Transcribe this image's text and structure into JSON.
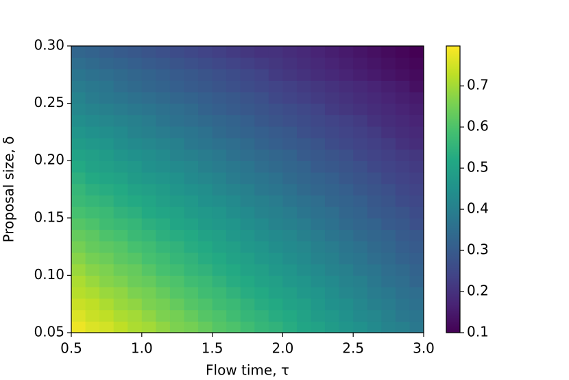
{
  "chart_data": {
    "type": "heatmap",
    "colormap": "viridis",
    "xlabel": "Flow time, τ",
    "ylabel": "Proposal size, δ",
    "xlim": [
      0.5,
      3.0
    ],
    "ylim": [
      0.05,
      0.3
    ],
    "xticks": [
      0.5,
      {
        "value": 1.0,
        "label": "1.0"
      },
      1.5,
      {
        "value": 2.0,
        "label": "2.0"
      },
      2.5,
      {
        "value": 3.0,
        "label": "3.0"
      }
    ],
    "yticks": [
      0.05,
      {
        "value": 0.1,
        "label": "0.10"
      },
      0.15,
      {
        "value": 0.2,
        "label": "0.20"
      },
      0.25,
      {
        "value": 0.3,
        "label": "0.30"
      }
    ],
    "clim": [
      0.1,
      0.797
    ],
    "cticks": [
      0.1,
      0.2,
      0.3,
      0.4,
      0.5,
      0.6,
      0.7
    ],
    "values": [
      [
        0.78,
        0.76,
        0.75,
        0.73,
        0.71,
        0.7,
        0.68,
        0.66,
        0.65,
        0.63,
        0.61,
        0.6,
        0.58,
        0.56,
        0.55,
        0.53,
        0.51,
        0.5,
        0.48,
        0.46,
        0.45,
        0.43,
        0.41,
        0.4,
        0.38
      ],
      [
        0.76,
        0.74,
        0.73,
        0.71,
        0.7,
        0.68,
        0.66,
        0.65,
        0.63,
        0.61,
        0.6,
        0.58,
        0.56,
        0.55,
        0.53,
        0.52,
        0.5,
        0.48,
        0.47,
        0.45,
        0.43,
        0.42,
        0.4,
        0.38,
        0.37
      ],
      [
        0.74,
        0.73,
        0.71,
        0.69,
        0.68,
        0.66,
        0.65,
        0.63,
        0.61,
        0.6,
        0.58,
        0.57,
        0.55,
        0.53,
        0.52,
        0.5,
        0.49,
        0.47,
        0.45,
        0.44,
        0.42,
        0.4,
        0.39,
        0.37,
        0.36
      ],
      [
        0.72,
        0.71,
        0.69,
        0.68,
        0.66,
        0.65,
        0.63,
        0.61,
        0.6,
        0.58,
        0.57,
        0.55,
        0.53,
        0.52,
        0.5,
        0.49,
        0.47,
        0.46,
        0.44,
        0.42,
        0.41,
        0.39,
        0.38,
        0.36,
        0.35
      ],
      [
        0.71,
        0.69,
        0.67,
        0.66,
        0.64,
        0.63,
        0.61,
        0.6,
        0.58,
        0.57,
        0.55,
        0.53,
        0.52,
        0.5,
        0.49,
        0.47,
        0.46,
        0.44,
        0.43,
        0.41,
        0.4,
        0.38,
        0.36,
        0.35,
        0.33
      ],
      [
        0.69,
        0.67,
        0.66,
        0.64,
        0.63,
        0.61,
        0.59,
        0.58,
        0.56,
        0.55,
        0.53,
        0.52,
        0.5,
        0.49,
        0.47,
        0.46,
        0.44,
        0.43,
        0.41,
        0.4,
        0.38,
        0.37,
        0.35,
        0.34,
        0.32
      ],
      [
        0.67,
        0.65,
        0.64,
        0.62,
        0.61,
        0.59,
        0.58,
        0.56,
        0.55,
        0.53,
        0.52,
        0.5,
        0.49,
        0.47,
        0.46,
        0.44,
        0.43,
        0.41,
        0.4,
        0.38,
        0.37,
        0.35,
        0.34,
        0.32,
        0.31
      ],
      [
        0.65,
        0.63,
        0.62,
        0.61,
        0.59,
        0.58,
        0.56,
        0.55,
        0.53,
        0.52,
        0.5,
        0.49,
        0.47,
        0.46,
        0.44,
        0.43,
        0.42,
        0.4,
        0.39,
        0.37,
        0.36,
        0.34,
        0.33,
        0.31,
        0.3
      ],
      [
        0.63,
        0.62,
        0.6,
        0.59,
        0.57,
        0.56,
        0.54,
        0.53,
        0.52,
        0.5,
        0.49,
        0.47,
        0.46,
        0.44,
        0.43,
        0.42,
        0.4,
        0.39,
        0.37,
        0.36,
        0.34,
        0.33,
        0.32,
        0.3,
        0.29
      ],
      [
        0.61,
        0.6,
        0.58,
        0.57,
        0.56,
        0.54,
        0.53,
        0.51,
        0.5,
        0.48,
        0.47,
        0.46,
        0.44,
        0.43,
        0.41,
        0.4,
        0.39,
        0.37,
        0.36,
        0.34,
        0.33,
        0.32,
        0.3,
        0.29,
        0.27
      ],
      [
        0.59,
        0.58,
        0.57,
        0.55,
        0.54,
        0.52,
        0.51,
        0.5,
        0.48,
        0.47,
        0.46,
        0.44,
        0.43,
        0.41,
        0.4,
        0.39,
        0.37,
        0.36,
        0.35,
        0.33,
        0.32,
        0.3,
        0.29,
        0.28,
        0.26
      ],
      [
        0.57,
        0.56,
        0.55,
        0.53,
        0.52,
        0.51,
        0.49,
        0.48,
        0.47,
        0.45,
        0.44,
        0.43,
        0.41,
        0.4,
        0.39,
        0.37,
        0.36,
        0.35,
        0.33,
        0.32,
        0.31,
        0.29,
        0.28,
        0.26,
        0.25
      ],
      [
        0.56,
        0.54,
        0.53,
        0.52,
        0.5,
        0.49,
        0.48,
        0.46,
        0.45,
        0.44,
        0.42,
        0.41,
        0.4,
        0.38,
        0.37,
        0.36,
        0.34,
        0.33,
        0.32,
        0.31,
        0.29,
        0.28,
        0.27,
        0.25,
        0.24
      ],
      [
        0.54,
        0.52,
        0.51,
        0.5,
        0.48,
        0.47,
        0.46,
        0.45,
        0.43,
        0.42,
        0.41,
        0.39,
        0.38,
        0.37,
        0.36,
        0.34,
        0.33,
        0.32,
        0.31,
        0.29,
        0.28,
        0.27,
        0.25,
        0.24,
        0.23
      ],
      [
        0.52,
        0.5,
        0.49,
        0.48,
        0.47,
        0.45,
        0.44,
        0.43,
        0.42,
        0.4,
        0.39,
        0.38,
        0.37,
        0.35,
        0.34,
        0.33,
        0.32,
        0.3,
        0.29,
        0.28,
        0.27,
        0.25,
        0.24,
        0.23,
        0.22
      ],
      [
        0.5,
        0.49,
        0.48,
        0.46,
        0.45,
        0.44,
        0.43,
        0.41,
        0.4,
        0.39,
        0.38,
        0.36,
        0.35,
        0.34,
        0.33,
        0.32,
        0.3,
        0.29,
        0.28,
        0.27,
        0.25,
        0.24,
        0.23,
        0.22,
        0.21
      ],
      [
        0.48,
        0.47,
        0.46,
        0.44,
        0.43,
        0.42,
        0.41,
        0.4,
        0.38,
        0.37,
        0.36,
        0.35,
        0.34,
        0.32,
        0.31,
        0.3,
        0.29,
        0.28,
        0.26,
        0.25,
        0.24,
        0.23,
        0.22,
        0.2,
        0.19
      ],
      [
        0.46,
        0.45,
        0.44,
        0.43,
        0.41,
        0.4,
        0.39,
        0.38,
        0.37,
        0.36,
        0.34,
        0.33,
        0.32,
        0.31,
        0.3,
        0.29,
        0.27,
        0.26,
        0.25,
        0.24,
        0.23,
        0.22,
        0.2,
        0.19,
        0.18
      ],
      [
        0.44,
        0.43,
        0.42,
        0.41,
        0.4,
        0.39,
        0.37,
        0.36,
        0.35,
        0.34,
        0.33,
        0.32,
        0.31,
        0.29,
        0.28,
        0.27,
        0.26,
        0.25,
        0.24,
        0.23,
        0.22,
        0.2,
        0.19,
        0.18,
        0.17
      ],
      [
        0.42,
        0.41,
        0.4,
        0.39,
        0.38,
        0.37,
        0.36,
        0.35,
        0.34,
        0.32,
        0.31,
        0.3,
        0.29,
        0.28,
        0.27,
        0.26,
        0.25,
        0.24,
        0.22,
        0.21,
        0.2,
        0.19,
        0.18,
        0.17,
        0.16
      ],
      [
        0.41,
        0.39,
        0.38,
        0.37,
        0.36,
        0.35,
        0.34,
        0.33,
        0.32,
        0.31,
        0.3,
        0.29,
        0.28,
        0.27,
        0.25,
        0.24,
        0.23,
        0.22,
        0.21,
        0.2,
        0.19,
        0.18,
        0.17,
        0.16,
        0.15
      ],
      [
        0.39,
        0.38,
        0.37,
        0.35,
        0.34,
        0.33,
        0.32,
        0.31,
        0.3,
        0.29,
        0.28,
        0.27,
        0.26,
        0.25,
        0.24,
        0.23,
        0.22,
        0.21,
        0.2,
        0.19,
        0.18,
        0.17,
        0.16,
        0.15,
        0.13
      ],
      [
        0.37,
        0.36,
        0.35,
        0.34,
        0.33,
        0.32,
        0.31,
        0.3,
        0.29,
        0.28,
        0.27,
        0.26,
        0.25,
        0.24,
        0.22,
        0.21,
        0.2,
        0.19,
        0.18,
        0.17,
        0.16,
        0.15,
        0.14,
        0.13,
        0.12
      ],
      [
        0.35,
        0.34,
        0.33,
        0.32,
        0.31,
        0.3,
        0.29,
        0.28,
        0.27,
        0.26,
        0.25,
        0.24,
        0.23,
        0.22,
        0.21,
        0.2,
        0.19,
        0.18,
        0.17,
        0.16,
        0.15,
        0.14,
        0.13,
        0.12,
        0.11
      ],
      [
        0.33,
        0.32,
        0.31,
        0.3,
        0.29,
        0.28,
        0.27,
        0.26,
        0.25,
        0.24,
        0.23,
        0.22,
        0.21,
        0.2,
        0.2,
        0.19,
        0.18,
        0.17,
        0.16,
        0.15,
        0.14,
        0.13,
        0.12,
        0.11,
        0.1
      ]
    ]
  }
}
